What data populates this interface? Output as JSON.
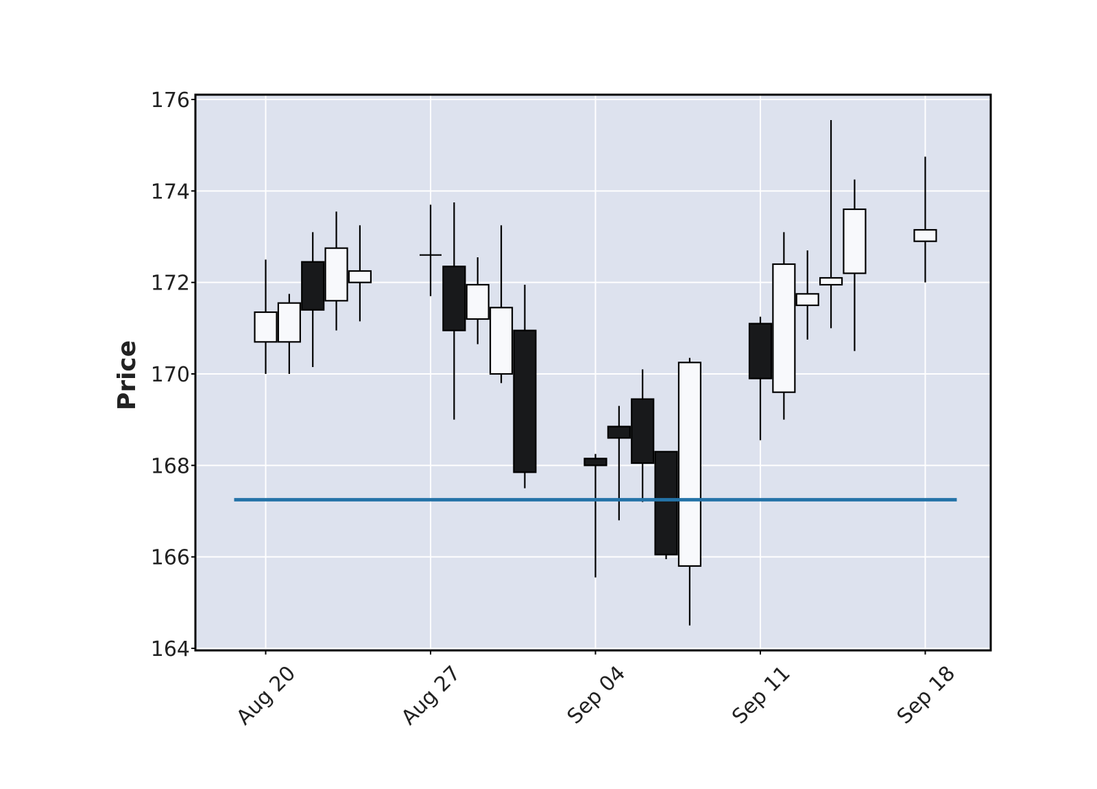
{
  "chart_data": {
    "type": "candlestick",
    "ylabel": "Price",
    "ylim": [
      164,
      176
    ],
    "yticks": [
      164,
      166,
      168,
      170,
      172,
      174,
      176
    ],
    "grid": true,
    "colors": {
      "background": "#dde2ee",
      "grid": "#ffffff",
      "up_body": "#f8f9fc",
      "down_body": "#18191b",
      "outline": "#000000",
      "hline": "#2473a8"
    },
    "xticks": [
      {
        "label": "Aug 20",
        "date": "2023-08-21"
      },
      {
        "label": "Aug 27",
        "date": "2023-08-28"
      },
      {
        "label": "Sep 04",
        "date": "2023-09-04"
      },
      {
        "label": "Sep 11",
        "date": "2023-09-11"
      },
      {
        "label": "Sep 18",
        "date": "2023-09-18"
      }
    ],
    "candles": [
      {
        "date": "2023-08-21",
        "open": 170.7,
        "high": 172.5,
        "low": 170.0,
        "close": 171.35
      },
      {
        "date": "2023-08-22",
        "open": 170.7,
        "high": 171.75,
        "low": 170.0,
        "close": 171.55
      },
      {
        "date": "2023-08-23",
        "open": 172.45,
        "high": 173.1,
        "low": 170.15,
        "close": 171.4
      },
      {
        "date": "2023-08-24",
        "open": 171.6,
        "high": 173.55,
        "low": 170.95,
        "close": 172.75
      },
      {
        "date": "2023-08-25",
        "open": 172.0,
        "high": 173.25,
        "low": 171.15,
        "close": 172.25
      },
      {
        "date": "2023-08-28",
        "open": 172.6,
        "high": 173.7,
        "low": 171.7,
        "close": 172.6
      },
      {
        "date": "2023-08-29",
        "open": 172.35,
        "high": 173.75,
        "low": 169.0,
        "close": 170.95
      },
      {
        "date": "2023-08-30",
        "open": 171.2,
        "high": 172.55,
        "low": 170.65,
        "close": 171.95
      },
      {
        "date": "2023-08-31",
        "open": 170.0,
        "high": 173.25,
        "low": 169.8,
        "close": 171.45
      },
      {
        "date": "2023-09-01",
        "open": 170.95,
        "high": 171.95,
        "low": 167.5,
        "close": 167.85
      },
      {
        "date": "2023-09-04",
        "open": 168.15,
        "high": 168.25,
        "low": 165.55,
        "close": 168.0
      },
      {
        "date": "2023-09-05",
        "open": 168.85,
        "high": 169.3,
        "low": 166.8,
        "close": 168.6
      },
      {
        "date": "2023-09-06",
        "open": 169.45,
        "high": 170.1,
        "low": 167.2,
        "close": 168.05
      },
      {
        "date": "2023-09-07",
        "open": 168.3,
        "high": 168.3,
        "low": 165.95,
        "close": 166.05
      },
      {
        "date": "2023-09-08",
        "open": 165.8,
        "high": 170.35,
        "low": 164.5,
        "close": 170.25
      },
      {
        "date": "2023-09-11",
        "open": 171.1,
        "high": 171.25,
        "low": 168.55,
        "close": 169.9
      },
      {
        "date": "2023-09-12",
        "open": 169.6,
        "high": 173.1,
        "low": 169.0,
        "close": 172.4
      },
      {
        "date": "2023-09-13",
        "open": 171.5,
        "high": 172.7,
        "low": 170.75,
        "close": 171.75
      },
      {
        "date": "2023-09-14",
        "open": 171.95,
        "high": 175.55,
        "low": 171.0,
        "close": 172.1
      },
      {
        "date": "2023-09-15",
        "open": 172.2,
        "high": 174.25,
        "low": 170.5,
        "close": 173.6
      },
      {
        "date": "2023-09-18",
        "open": 172.9,
        "high": 174.75,
        "low": 172.0,
        "close": 173.15
      }
    ],
    "hlines": [
      167.25
    ]
  }
}
